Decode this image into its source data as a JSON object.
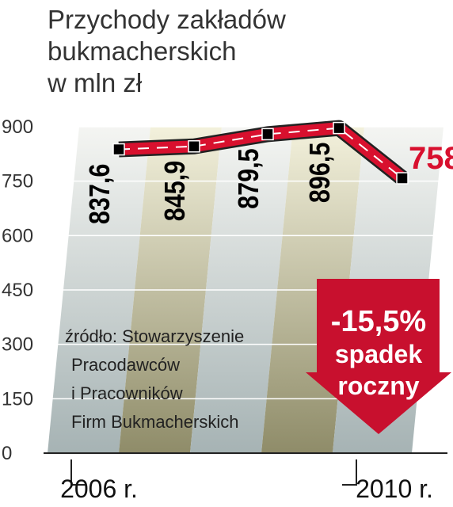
{
  "chart_data": {
    "type": "line",
    "title": [
      "Przychody zakładów",
      "bukmacherskich",
      "w mln zł"
    ],
    "categories": [
      "2006 r.",
      null,
      null,
      null,
      "2010 r."
    ],
    "series": [
      {
        "name": "Przychody",
        "color": "#d8102e",
        "values": [
          837.6,
          845.9,
          879.5,
          896.5,
          758
        ],
        "value_labels": [
          "837,6",
          "845,9",
          "879,5",
          "896,5",
          "758"
        ]
      }
    ],
    "ylim": [
      0,
      900
    ],
    "yticks": [
      0,
      150,
      300,
      450,
      600,
      750,
      900
    ],
    "annotation": [
      "-15,5%",
      "spadek",
      "roczny"
    ],
    "source": [
      "źródło: Stowarzyszenie",
      "Pracodawców",
      "i Pracowników",
      "Firm Bukmacherskich"
    ]
  }
}
